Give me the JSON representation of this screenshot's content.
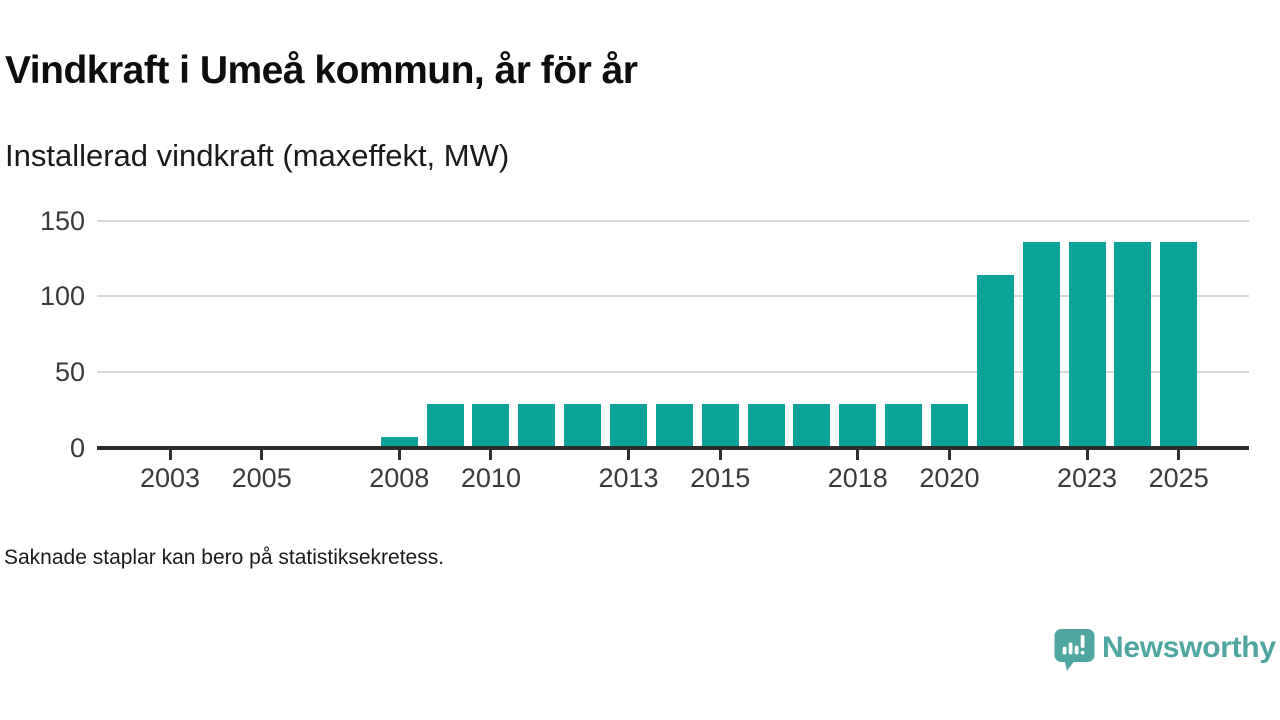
{
  "header": {
    "title": "Vindkraft i Umeå kommun, år för år",
    "subtitle": "Installerad vindkraft (maxeffekt, MW)"
  },
  "footer": {
    "note": "Saknade staplar kan bero på statistiksekretess.",
    "brand": "Newsworthy"
  },
  "colors": {
    "bar": "#0ba29a",
    "brand": "#4fa6a0",
    "axis": "#2d2d2d",
    "grid": "#d9d9d9"
  },
  "chart_data": {
    "type": "bar",
    "title": "Vindkraft i Umeå kommun, år för år",
    "subtitle": "Installerad vindkraft (maxeffekt, MW)",
    "xlabel": "",
    "ylabel": "Installerad vindkraft (maxeffekt, MW)",
    "x": [
      2008,
      2009,
      2010,
      2011,
      2012,
      2013,
      2014,
      2015,
      2016,
      2017,
      2018,
      2019,
      2020,
      2021,
      2022,
      2023,
      2024,
      2025
    ],
    "values": [
      7,
      29,
      29,
      29,
      29,
      29,
      29,
      29,
      29,
      29,
      29,
      29,
      29,
      114,
      136,
      136,
      136,
      136
    ],
    "ylim": [
      0,
      150
    ],
    "yticks": [
      0,
      50,
      100,
      150
    ],
    "xticks": [
      2003,
      2005,
      2008,
      2010,
      2013,
      2015,
      2018,
      2020,
      2023,
      2025
    ],
    "x_domain": [
      2001,
      2026.5
    ],
    "grid": "horizontal",
    "legend": "none",
    "bar_color": "#0ba29a",
    "note": "Saknade staplar kan bero på statistiksekretess."
  }
}
